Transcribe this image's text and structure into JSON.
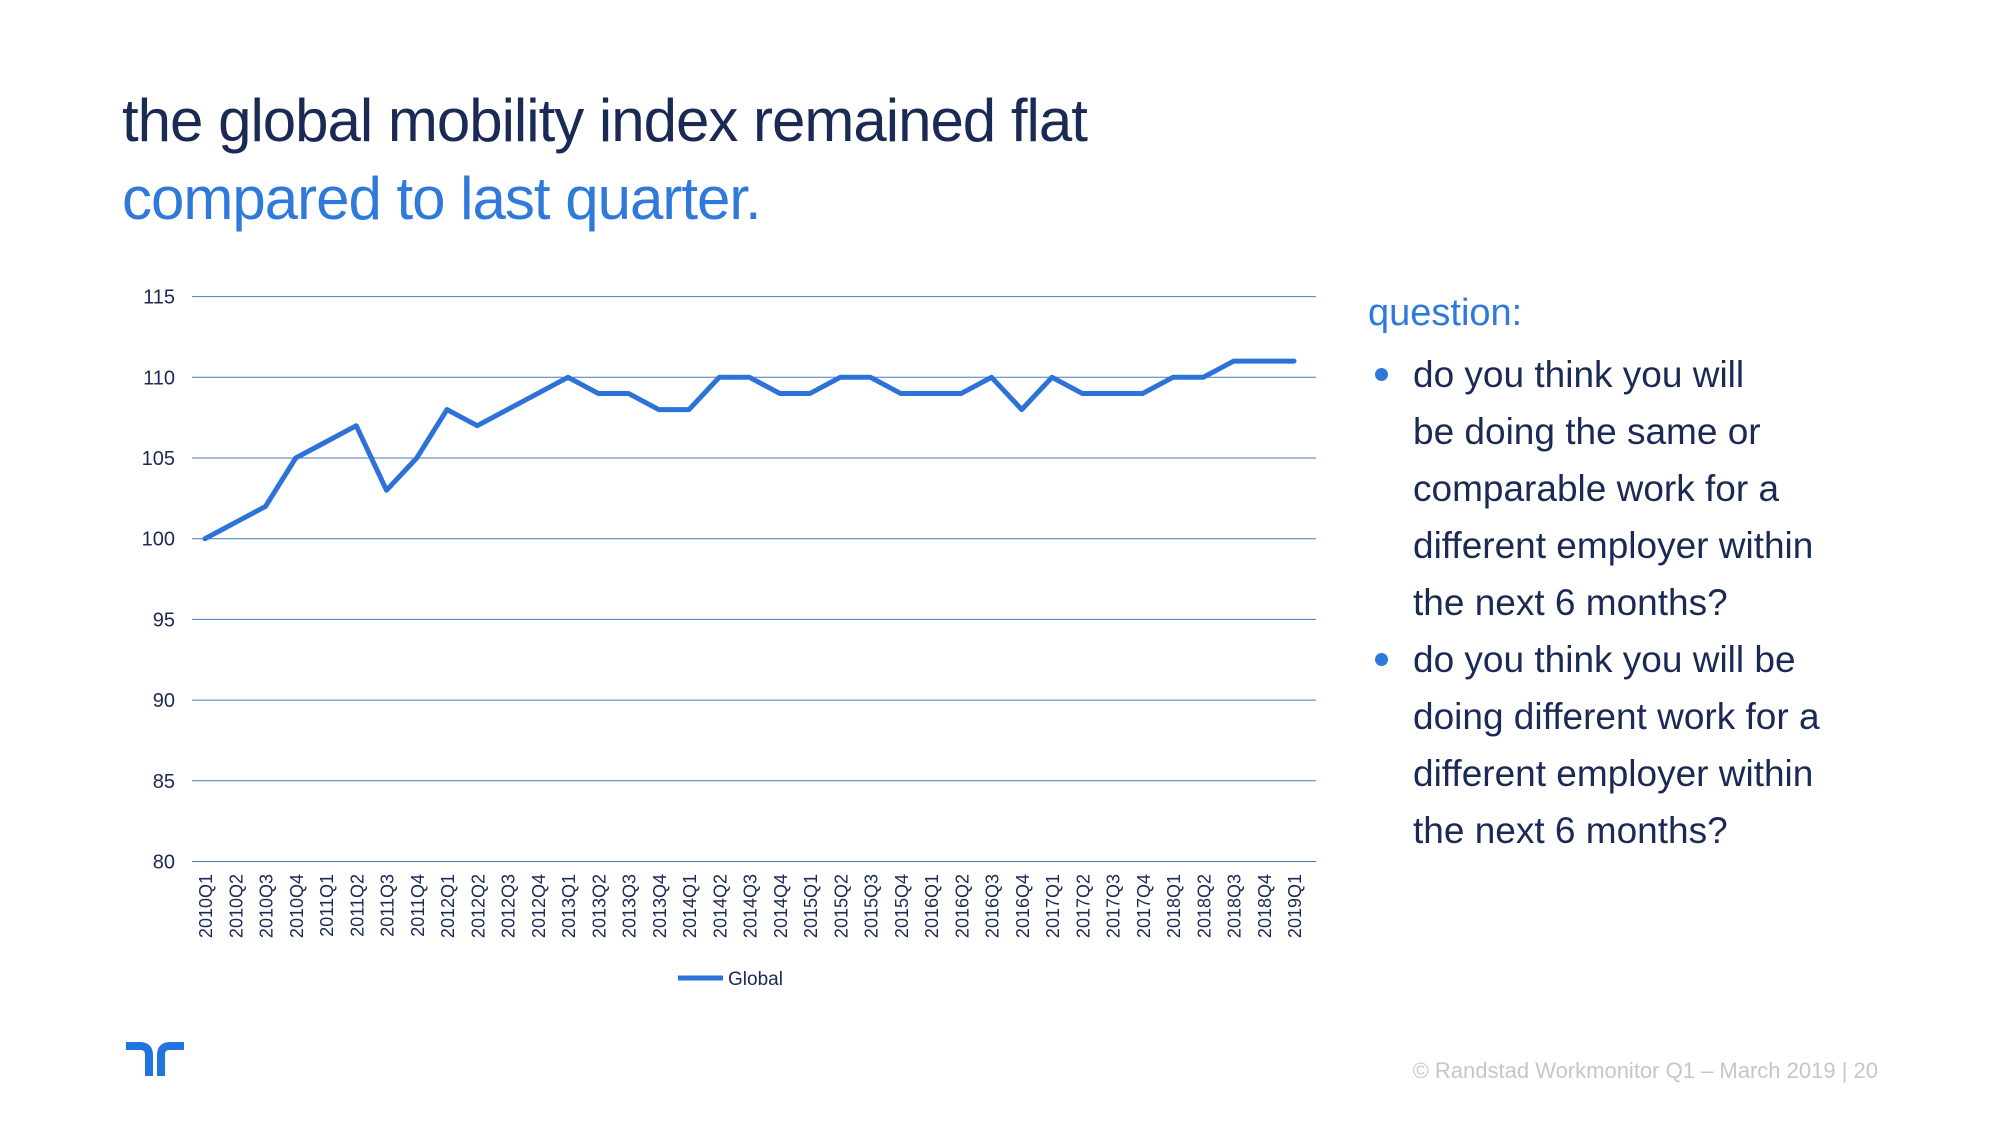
{
  "slide": {
    "title_line1": "the global mobility index remained flat",
    "title_line2": "compared to last quarter.",
    "footer": "© Randstad Workmonitor Q1 – March 2019 | 20",
    "colors": {
      "navy_text": "#1b2a55",
      "accent_blue": "#2e79d9",
      "series_line": "#2d72d8",
      "gridline": "#4a7ab5",
      "footer_gray": "#c6c6c6",
      "logo_blue": "#2173e0"
    }
  },
  "question_panel": {
    "heading": "question:",
    "bullets": [
      "do you think you will\nbe doing the same or\ncomparable work for a\ndifferent employer within\nthe next 6 months?",
      "do you think you will be\ndoing different work for a\ndifferent employer within\nthe next 6 months?"
    ]
  },
  "chart_data": {
    "type": "line",
    "title": "",
    "xlabel": "",
    "ylabel": "",
    "ylim": [
      80,
      115
    ],
    "ytick_step": 5,
    "grid": true,
    "legend_position": "bottom",
    "categories": [
      "2010Q1",
      "2010Q2",
      "2010Q3",
      "2010Q4",
      "2011Q1",
      "2011Q2",
      "2011Q3",
      "2011Q4",
      "2012Q1",
      "2012Q2",
      "2012Q3",
      "2012Q4",
      "2013Q1",
      "2013Q2",
      "2013Q3",
      "2013Q4",
      "2014Q1",
      "2014Q2",
      "2014Q3",
      "2014Q4",
      "2015Q1",
      "2015Q2",
      "2015Q3",
      "2015Q4",
      "2016Q1",
      "2016Q2",
      "2016Q3",
      "2016Q4",
      "2017Q1",
      "2017Q2",
      "2017Q3",
      "2017Q4",
      "2018Q1",
      "2018Q2",
      "2018Q3",
      "2018Q4",
      "2019Q1"
    ],
    "series": [
      {
        "name": "Global",
        "values": [
          100,
          101,
          102,
          105,
          106,
          107,
          103,
          105,
          108,
          107,
          108,
          109,
          110,
          109,
          109,
          108,
          108,
          110,
          110,
          109,
          109,
          110,
          110,
          109,
          109,
          109,
          110,
          108,
          110,
          109,
          109,
          109,
          110,
          110,
          111,
          111,
          111
        ]
      }
    ]
  }
}
